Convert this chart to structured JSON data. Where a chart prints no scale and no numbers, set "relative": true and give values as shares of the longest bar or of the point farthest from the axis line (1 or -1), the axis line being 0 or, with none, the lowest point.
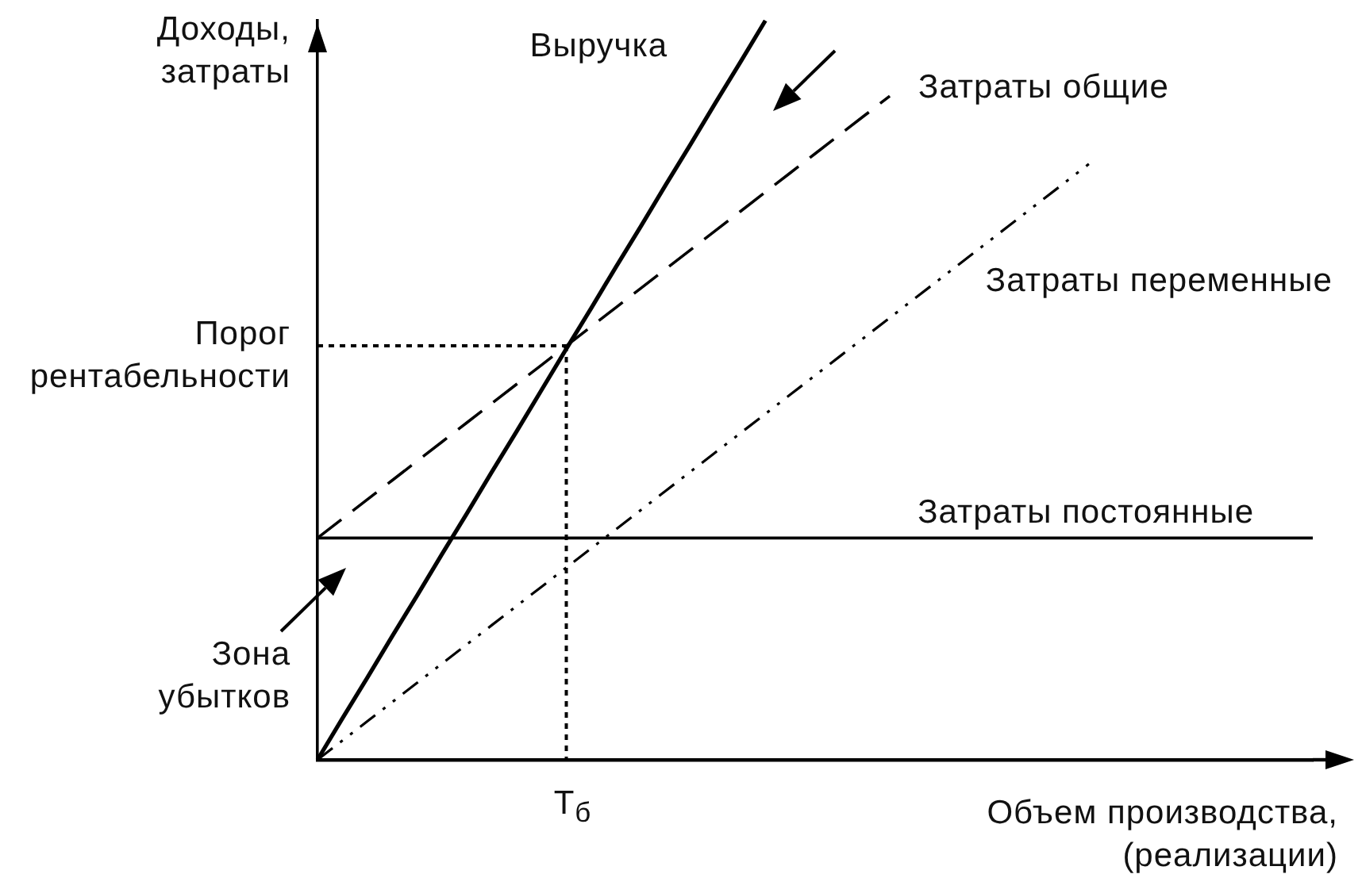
{
  "chart_data": {
    "type": "line",
    "xlabel": "Объем производства, (реализации)",
    "ylabel": "Доходы, затраты",
    "relative": true,
    "grid": false,
    "legend": false,
    "marker": "none",
    "categories": [
      null,
      null,
      null,
      null,
      null,
      null,
      null,
      null,
      null,
      null,
      null,
      null,
      null,
      null,
      null,
      null,
      null,
      null,
      null,
      null,
      null,
      null,
      null,
      null,
      null,
      null,
      null,
      null,
      null,
      null,
      null,
      null,
      null,
      null,
      null,
      null,
      null,
      null,
      null,
      null,
      null
    ],
    "series": [
      {
        "name": "Выручка",
        "color": "#000000",
        "line_style": "solid",
        "values": [
          0,
          0.056,
          0.111,
          0.167,
          0.222,
          0.278,
          0.333,
          0.389,
          0.444,
          0.5,
          0.556,
          0.611,
          0.667,
          0.722,
          0.778,
          0.833,
          0.889,
          0.944,
          1,
          null,
          null,
          null,
          null,
          null,
          null,
          null,
          null,
          null,
          null,
          null,
          null,
          null,
          null,
          null,
          null,
          null,
          null,
          null,
          null,
          null,
          null
        ]
      },
      {
        "name": "Затраты общие",
        "color": "#000000",
        "line_style": "dashed",
        "values": [
          0.3,
          0.326,
          0.352,
          0.378,
          0.404,
          0.43,
          0.456,
          0.482,
          0.508,
          0.534,
          0.56,
          0.586,
          0.612,
          0.638,
          0.664,
          0.69,
          0.716,
          0.742,
          0.768,
          0.794,
          0.82,
          0.846,
          0.872,
          0.898,
          null,
          null,
          null,
          null,
          null,
          null,
          null,
          null,
          null,
          null,
          null,
          null,
          null,
          null,
          null,
          null,
          null
        ]
      },
      {
        "name": "Затраты переменные",
        "color": "#000000",
        "line_style": "dotted",
        "values": [
          0,
          0.026,
          0.052,
          0.078,
          0.104,
          0.13,
          0.156,
          0.182,
          0.208,
          0.234,
          0.26,
          0.286,
          0.312,
          0.338,
          0.364,
          0.39,
          0.416,
          0.442,
          0.468,
          0.494,
          0.52,
          0.546,
          0.572,
          0.598,
          0.624,
          0.65,
          0.676,
          0.702,
          0.728,
          0.754,
          0.78,
          0.806,
          null,
          null,
          null,
          null,
          null,
          null,
          null,
          null,
          null
        ]
      },
      {
        "name": "Затраты постоянные",
        "color": "#000000",
        "line_style": "solid",
        "values": [
          0.3,
          0.3,
          0.3,
          0.3,
          0.3,
          0.3,
          0.3,
          0.3,
          0.3,
          0.3,
          0.3,
          0.3,
          0.3,
          0.3,
          0.3,
          0.3,
          0.3,
          0.3,
          0.3,
          0.3,
          0.3,
          0.3,
          0.3,
          0.3,
          0.3,
          0.3,
          0.3,
          0.3,
          0.3,
          0.3,
          0.3,
          0.3,
          0.3,
          0.3,
          0.3,
          0.3,
          0.3,
          0.3,
          0.3,
          0.3,
          0.3
        ]
      }
    ],
    "ref_lines": [
      {
        "axis": "y",
        "value": 0.56,
        "label": "Порог рентабельности",
        "line_style": "dotted"
      }
    ],
    "annotations": [
      "Зона убытков",
      "Т$_{б}$"
    ]
  }
}
